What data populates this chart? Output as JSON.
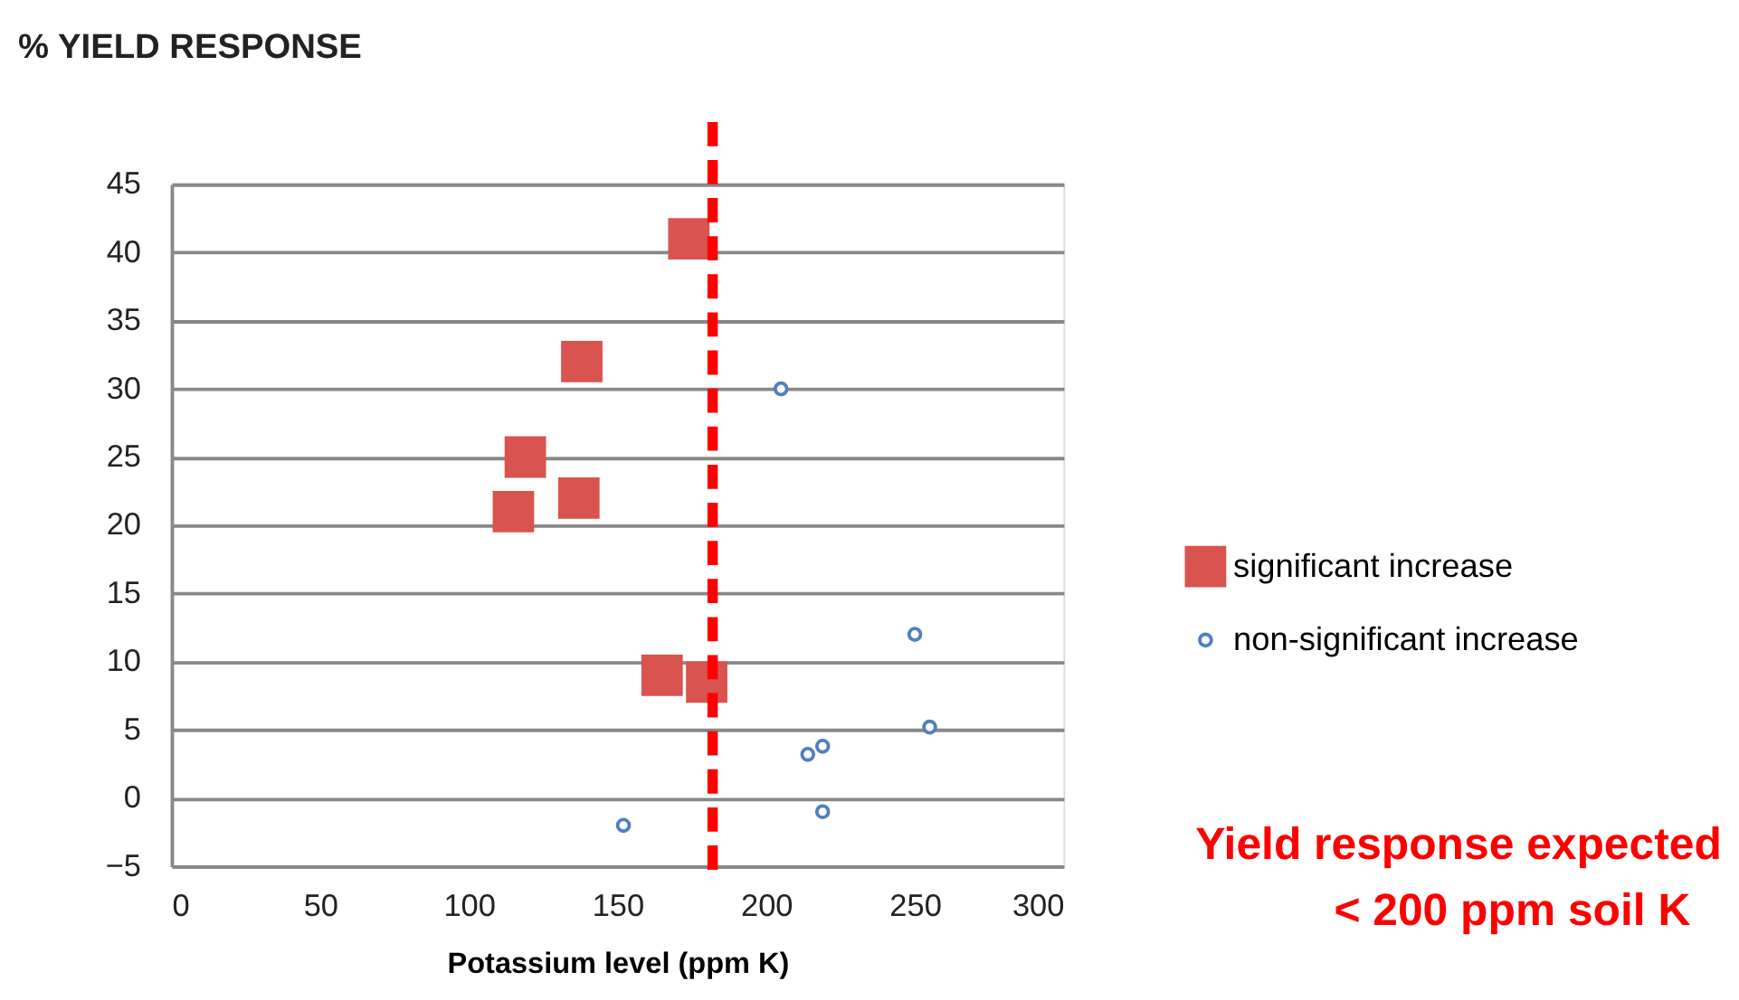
{
  "chart_data": {
    "type": "scatter",
    "title": "% YIELD RESPONSE",
    "xlabel": "Potassium level (ppm K)",
    "series": [
      {
        "name": "significant increase",
        "color": "#d9534f",
        "marker": "square",
        "x": [
          174,
          138,
          119,
          115,
          137,
          165,
          180
        ],
        "values": [
          41,
          32,
          25,
          21,
          22,
          9,
          8.5
        ]
      },
      {
        "name": "non-significant increase",
        "color": "#4f81bd",
        "marker": "circle",
        "x": [
          205,
          250,
          255,
          214,
          219,
          219,
          152
        ],
        "values": [
          30,
          12,
          5.2,
          3.2,
          3.8,
          -1,
          -2
        ]
      }
    ],
    "xlim": [
      0,
      300
    ],
    "xticks": [
      0,
      50,
      100,
      150,
      200,
      250,
      300
    ],
    "ylim": [
      -5,
      45
    ],
    "yticks": [
      -5,
      0,
      5,
      10,
      15,
      20,
      25,
      30,
      35,
      40,
      45
    ],
    "grid": "y",
    "legend": "right",
    "ref_lines": [
      {
        "axis": "x",
        "value": 182,
        "color": "#ff0000",
        "line_style": "dashed"
      }
    ],
    "annotations": [
      "Yield response expected",
      "<  200 ppm soil K"
    ]
  }
}
